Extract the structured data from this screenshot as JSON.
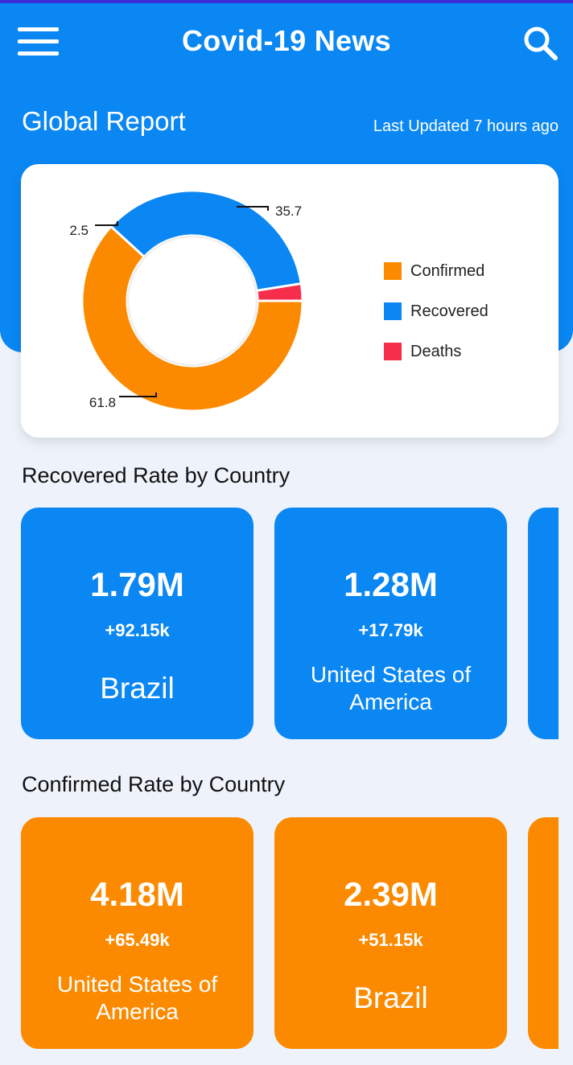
{
  "app": {
    "title": "Covid-19 News"
  },
  "global": {
    "title": "Global Report",
    "last_updated": "Last Updated 7 hours ago"
  },
  "chart_data": {
    "type": "pie",
    "variant": "donut",
    "categories": [
      "Confirmed",
      "Recovered",
      "Deaths"
    ],
    "values": [
      61.8,
      35.7,
      2.5
    ],
    "data_labels": [
      "61.8",
      "35.7",
      "2.5"
    ],
    "colors": [
      "#fb8a00",
      "#0a87f2",
      "#f62d4b"
    ],
    "legend_position": "right"
  },
  "recovered": {
    "title": "Recovered Rate by Country",
    "cards": [
      {
        "value": "1.79M",
        "delta": "+92.15k",
        "country": "Brazil"
      },
      {
        "value": "1.28M",
        "delta": "+17.79k",
        "country": "United States of America"
      }
    ]
  },
  "confirmed": {
    "title": "Confirmed Rate by Country",
    "cards": [
      {
        "value": "4.18M",
        "delta": "+65.49k",
        "country": "United States of America"
      },
      {
        "value": "2.39M",
        "delta": "+51.15k",
        "country": "Brazil"
      }
    ]
  },
  "icons": {
    "menu": "menu-icon",
    "search": "search-icon"
  },
  "colors": {
    "primary": "#0a87f2",
    "confirmed": "#fb8a00",
    "recovered": "#0a87f2",
    "deaths": "#f62d4b"
  }
}
